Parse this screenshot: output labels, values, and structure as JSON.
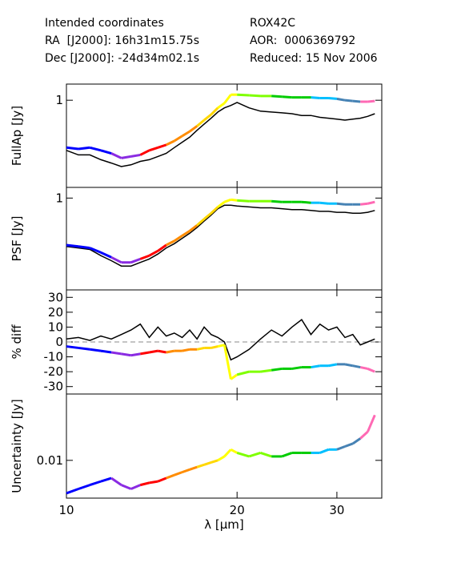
{
  "header": {
    "left": [
      "Intended coordinates",
      "RA  [J2000]: 16h31m15.75s",
      "Dec [J2000]: -24d34m02.1s"
    ],
    "right": [
      "ROX42C",
      "AOR:  0006369792",
      "Reduced: 15 Nov 2006"
    ]
  },
  "chart_data": {
    "type": "line",
    "xlabel": "λ [μm]",
    "xscale": "log",
    "xlim": [
      10,
      36
    ],
    "xticks": [
      10,
      20,
      30
    ],
    "panels": [
      {
        "name": "fullap",
        "ylabel": "FullAp [Jy]",
        "yscale": "log",
        "ylim": [
          0.3,
          1.25
        ],
        "yticks": [
          1
        ],
        "series": [
          {
            "name": "black",
            "color": "#000000",
            "x": [
              10,
              10.5,
              11,
              11.5,
              12,
              12.5,
              13,
              13.5,
              14,
              14.5,
              15,
              15.5,
              16,
              16.5,
              17,
              17.5,
              18,
              18.5,
              19,
              19.5,
              20,
              21,
              22,
              23,
              24,
              25,
              26,
              27,
              28,
              29,
              30,
              31,
              32,
              33,
              34,
              35
            ],
            "y": [
              0.5,
              0.47,
              0.47,
              0.44,
              0.42,
              0.4,
              0.41,
              0.43,
              0.44,
              0.46,
              0.48,
              0.52,
              0.56,
              0.6,
              0.66,
              0.72,
              0.78,
              0.85,
              0.9,
              0.93,
              0.97,
              0.9,
              0.86,
              0.85,
              0.84,
              0.83,
              0.81,
              0.81,
              0.79,
              0.78,
              0.77,
              0.76,
              0.77,
              0.78,
              0.8,
              0.83
            ]
          },
          {
            "name": "colored",
            "color": "#888888",
            "x": [
              10,
              10.5,
              11,
              11.5,
              12,
              12.5,
              13,
              13.5,
              14,
              14.5,
              15,
              15.5,
              16,
              16.5,
              17,
              17.5,
              18,
              18.5,
              19,
              19.5,
              20,
              21,
              22,
              23,
              24,
              25,
              26,
              27,
              28,
              29,
              30,
              31,
              32,
              33,
              34,
              35
            ],
            "y": [
              0.52,
              0.51,
              0.52,
              0.5,
              0.48,
              0.45,
              0.46,
              0.47,
              0.5,
              0.52,
              0.54,
              0.57,
              0.61,
              0.65,
              0.7,
              0.76,
              0.82,
              0.9,
              0.96,
              1.08,
              1.08,
              1.07,
              1.06,
              1.06,
              1.05,
              1.04,
              1.04,
              1.04,
              1.03,
              1.03,
              1.02,
              1.0,
              0.99,
              0.98,
              0.98,
              0.99
            ]
          }
        ]
      },
      {
        "name": "psf",
        "ylabel": "PSF [Jy]",
        "yscale": "log",
        "ylim": [
          0.3,
          1.15
        ],
        "yticks": [
          1
        ],
        "series": [
          {
            "name": "black",
            "color": "#000000",
            "x": [
              10,
              10.5,
              11,
              11.5,
              12,
              12.5,
              13,
              13.5,
              14,
              14.5,
              15,
              15.5,
              16,
              16.5,
              17,
              17.5,
              18,
              18.5,
              19,
              19.5,
              20,
              21,
              22,
              23,
              24,
              25,
              26,
              27,
              28,
              29,
              30,
              31,
              32,
              33,
              34,
              35
            ],
            "y": [
              0.53,
              0.52,
              0.51,
              0.47,
              0.44,
              0.41,
              0.41,
              0.43,
              0.45,
              0.48,
              0.52,
              0.55,
              0.59,
              0.63,
              0.68,
              0.74,
              0.8,
              0.87,
              0.91,
              0.91,
              0.9,
              0.89,
              0.88,
              0.88,
              0.87,
              0.86,
              0.86,
              0.85,
              0.84,
              0.84,
              0.83,
              0.83,
              0.82,
              0.82,
              0.83,
              0.85
            ]
          },
          {
            "name": "colored",
            "color": "#888888",
            "x": [
              10,
              10.5,
              11,
              11.5,
              12,
              12.5,
              13,
              13.5,
              14,
              14.5,
              15,
              15.5,
              16,
              16.5,
              17,
              17.5,
              18,
              18.5,
              19,
              19.5,
              20,
              21,
              22,
              23,
              24,
              25,
              26,
              27,
              28,
              29,
              30,
              31,
              32,
              33,
              34,
              35
            ],
            "y": [
              0.54,
              0.53,
              0.52,
              0.49,
              0.46,
              0.43,
              0.43,
              0.45,
              0.47,
              0.5,
              0.54,
              0.57,
              0.61,
              0.65,
              0.7,
              0.76,
              0.82,
              0.89,
              0.95,
              0.98,
              0.97,
              0.96,
              0.96,
              0.96,
              0.95,
              0.95,
              0.95,
              0.94,
              0.94,
              0.93,
              0.93,
              0.92,
              0.92,
              0.92,
              0.93,
              0.95
            ]
          }
        ]
      },
      {
        "name": "pctdiff",
        "ylabel": "% diff",
        "yscale": "linear",
        "ylim": [
          -35,
          35
        ],
        "yticks": [
          -30,
          -20,
          -10,
          0,
          10,
          20,
          30
        ],
        "series": [
          {
            "name": "black",
            "color": "#000000",
            "x": [
              10,
              10.5,
              11,
              11.5,
              12,
              12.5,
              13,
              13.5,
              14,
              14.5,
              15,
              15.5,
              16,
              16.5,
              17,
              17.5,
              18,
              18.5,
              19,
              19.5,
              20,
              21,
              22,
              23,
              24,
              25,
              26,
              27,
              28,
              29,
              30,
              31,
              32,
              33,
              34,
              35
            ],
            "y": [
              2,
              3,
              1,
              4,
              2,
              5,
              8,
              12,
              3,
              10,
              4,
              6,
              3,
              8,
              2,
              10,
              5,
              3,
              0,
              -12,
              -10,
              -5,
              2,
              8,
              4,
              10,
              15,
              5,
              12,
              8,
              10,
              3,
              5,
              -2,
              0,
              2
            ]
          },
          {
            "name": "colored",
            "color": "#888888",
            "x": [
              10,
              10.5,
              11,
              11.5,
              12,
              12.5,
              13,
              13.5,
              14,
              14.5,
              15,
              15.5,
              16,
              16.5,
              17,
              17.5,
              18,
              18.5,
              19,
              19.5,
              20,
              21,
              22,
              23,
              24,
              25,
              26,
              27,
              28,
              29,
              30,
              31,
              32,
              33,
              34,
              35
            ],
            "y": [
              -3,
              -4,
              -5,
              -6,
              -7,
              -8,
              -9,
              -8,
              -7,
              -6,
              -7,
              -6,
              -6,
              -5,
              -5,
              -4,
              -4,
              -3,
              -2,
              -25,
              -22,
              -20,
              -20,
              -19,
              -18,
              -18,
              -17,
              -17,
              -16,
              -16,
              -15,
              -15,
              -16,
              -17,
              -18,
              -20
            ]
          }
        ]
      },
      {
        "name": "uncertainty",
        "ylabel": "Uncertainty [Jy]",
        "yscale": "log",
        "ylim": [
          0.004,
          0.05
        ],
        "yticks": [
          0.01
        ],
        "series": [
          {
            "name": "colored",
            "color": "#888888",
            "x": [
              10,
              10.5,
              11,
              11.5,
              12,
              12.5,
              13,
              13.5,
              14,
              14.5,
              15,
              15.5,
              16,
              16.5,
              17,
              17.5,
              18,
              18.5,
              19,
              19.5,
              20,
              21,
              22,
              23,
              24,
              25,
              26,
              27,
              28,
              29,
              30,
              31,
              32,
              33,
              34,
              35
            ],
            "y": [
              0.0045,
              0.005,
              0.0055,
              0.006,
              0.0065,
              0.0055,
              0.005,
              0.0055,
              0.0058,
              0.006,
              0.0065,
              0.007,
              0.0075,
              0.008,
              0.0085,
              0.009,
              0.0095,
              0.01,
              0.011,
              0.013,
              0.012,
              0.011,
              0.012,
              0.011,
              0.011,
              0.012,
              0.012,
              0.012,
              0.012,
              0.013,
              0.013,
              0.014,
              0.015,
              0.017,
              0.02,
              0.03
            ]
          }
        ]
      }
    ]
  }
}
